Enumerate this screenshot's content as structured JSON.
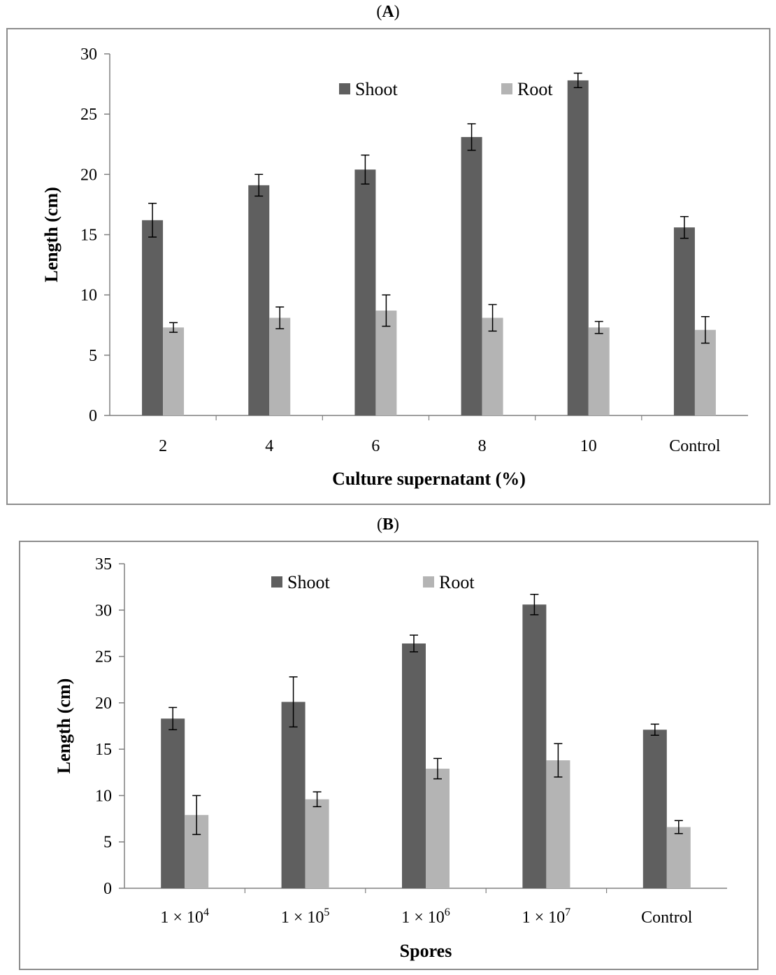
{
  "charts": [
    {
      "panel_open": "(",
      "panel_letter": "A",
      "panel_close": ")"
    },
    {
      "panel_open": "(",
      "panel_letter": "B",
      "panel_close": ")"
    }
  ],
  "colors": {
    "shoot": "#5f5f5f",
    "root": "#b4b4b4",
    "axis": "#808080",
    "frame": "#8c8c8c"
  },
  "chart_data": [
    {
      "type": "bar",
      "title": "(A)",
      "xlabel": "Culture supernatant (%)",
      "ylabel": "Length (cm)",
      "ylim": [
        0,
        30
      ],
      "yticks": [
        0,
        5,
        10,
        15,
        20,
        25,
        30
      ],
      "categories": [
        "2",
        "4",
        "6",
        "8",
        "10",
        "Control"
      ],
      "legend_position": "top",
      "series": [
        {
          "name": "Shoot",
          "values": [
            16.2,
            19.1,
            20.4,
            23.1,
            27.8,
            15.6
          ],
          "errors": [
            1.4,
            0.9,
            1.2,
            1.1,
            0.6,
            0.9
          ]
        },
        {
          "name": "Root",
          "values": [
            7.3,
            8.1,
            8.7,
            8.1,
            7.3,
            7.1
          ],
          "errors": [
            0.4,
            0.9,
            1.3,
            1.1,
            0.5,
            1.1
          ]
        }
      ]
    },
    {
      "type": "bar",
      "title": "(B)",
      "xlabel": "Spores",
      "ylabel": "Length (cm)",
      "ylim": [
        0,
        35
      ],
      "yticks": [
        0,
        5,
        10,
        15,
        20,
        25,
        30,
        35
      ],
      "categories": [
        {
          "base": "1 × 10",
          "exp": "4"
        },
        {
          "base": "1 × 10",
          "exp": "5"
        },
        {
          "base": "1 × 10",
          "exp": "6"
        },
        {
          "base": "1 × 10",
          "exp": "7"
        },
        {
          "base": "Control",
          "exp": ""
        }
      ],
      "legend_position": "top",
      "series": [
        {
          "name": "Shoot",
          "values": [
            18.3,
            20.1,
            26.4,
            30.6,
            17.1
          ],
          "errors": [
            1.2,
            2.7,
            0.9,
            1.1,
            0.6
          ]
        },
        {
          "name": "Root",
          "values": [
            7.9,
            9.6,
            12.9,
            13.8,
            6.6
          ],
          "errors": [
            2.1,
            0.8,
            1.1,
            1.8,
            0.7
          ]
        }
      ]
    }
  ]
}
